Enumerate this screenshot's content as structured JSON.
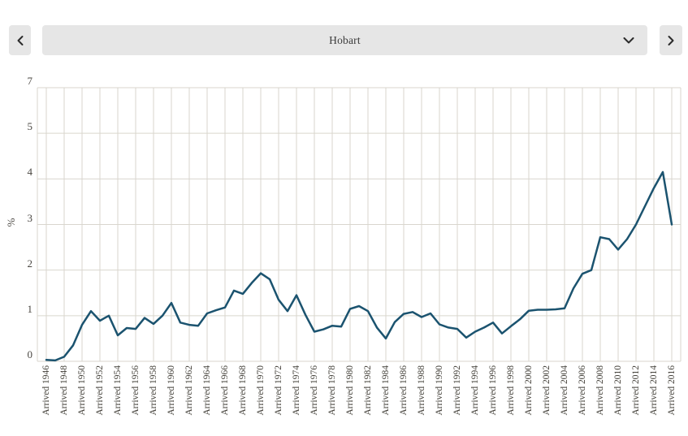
{
  "toolbar": {
    "prev_button": {
      "icon": "chevron-left-icon"
    },
    "next_button": {
      "icon": "chevron-right-icon"
    },
    "selector": {
      "value": "Hobart",
      "icon": "chevron-down-icon"
    }
  },
  "chart_data": {
    "type": "line",
    "title": "",
    "xlabel": "",
    "ylabel": "%",
    "legend": "none",
    "grid": true,
    "x_range": [
      1946,
      2016
    ],
    "y_tick_labels": [
      "7",
      "5",
      "4",
      "3",
      "2",
      "1",
      "0"
    ],
    "y_axis_note": "seven equally spaced gridlines labelled 7,5,4,3,2,1,0 (value 6 label skipped in source chart)",
    "x_tick_labels": [
      "Arrived 1946",
      "Arrived 1948",
      "Arrived 1950",
      "Arrived 1952",
      "Arrived 1954",
      "Arrived 1956",
      "Arrived 1958",
      "Arrived 1960",
      "Arrived 1962",
      "Arrived 1964",
      "Arrived 1966",
      "Arrived 1968",
      "Arrived 1970",
      "Arrived 1972",
      "Arrived 1974",
      "Arrived 1976",
      "Arrived 1978",
      "Arrived 1980",
      "Arrived 1982",
      "Arrived 1984",
      "Arrived 1986",
      "Arrived 1988",
      "Arrived 1990",
      "Arrived 1992",
      "Arrived 1994",
      "Arrived 1996",
      "Arrived 1998",
      "Arrived 2000",
      "Arrived 2002",
      "Arrived 2004",
      "Arrived 2006",
      "Arrived 2008",
      "Arrived 2010",
      "Arrived 2012",
      "Arrived 2014",
      "Arrived 2016"
    ],
    "series": [
      {
        "name": "Hobart",
        "x": [
          1946,
          1947,
          1948,
          1949,
          1950,
          1951,
          1952,
          1953,
          1954,
          1955,
          1956,
          1957,
          1958,
          1959,
          1960,
          1961,
          1962,
          1963,
          1964,
          1965,
          1966,
          1967,
          1968,
          1969,
          1970,
          1971,
          1972,
          1973,
          1974,
          1975,
          1976,
          1977,
          1978,
          1979,
          1980,
          1981,
          1982,
          1983,
          1984,
          1985,
          1986,
          1987,
          1988,
          1989,
          1990,
          1991,
          1992,
          1993,
          1994,
          1995,
          1996,
          1997,
          1998,
          1999,
          2000,
          2001,
          2002,
          2003,
          2004,
          2005,
          2006,
          2007,
          2008,
          2009,
          2010,
          2011,
          2012,
          2013,
          2014,
          2015,
          2016
        ],
        "values": [
          0.03,
          0.02,
          0.1,
          0.35,
          0.8,
          1.1,
          0.89,
          1.0,
          0.57,
          0.73,
          0.71,
          0.95,
          0.82,
          1.0,
          1.28,
          0.85,
          0.8,
          0.78,
          1.05,
          1.12,
          1.18,
          1.55,
          1.48,
          1.72,
          1.93,
          1.8,
          1.35,
          1.1,
          1.45,
          1.02,
          0.65,
          0.7,
          0.78,
          0.76,
          1.15,
          1.21,
          1.1,
          0.74,
          0.5,
          0.86,
          1.04,
          1.08,
          0.97,
          1.05,
          0.81,
          0.74,
          0.71,
          0.52,
          0.65,
          0.74,
          0.85,
          0.61,
          0.77,
          0.92,
          1.11,
          1.13,
          1.13,
          1.14,
          1.16,
          1.6,
          1.92,
          2.0,
          2.72,
          2.68,
          2.45,
          2.68,
          3.0,
          3.4,
          3.8,
          4.15,
          3.0
        ]
      }
    ],
    "colors": {
      "line": "#1b536f",
      "grid": "#d9d6ce",
      "tick_text": "#4a4742",
      "button_bg": "#e6e6e6",
      "button_glyph": "#2b2b2b"
    }
  }
}
